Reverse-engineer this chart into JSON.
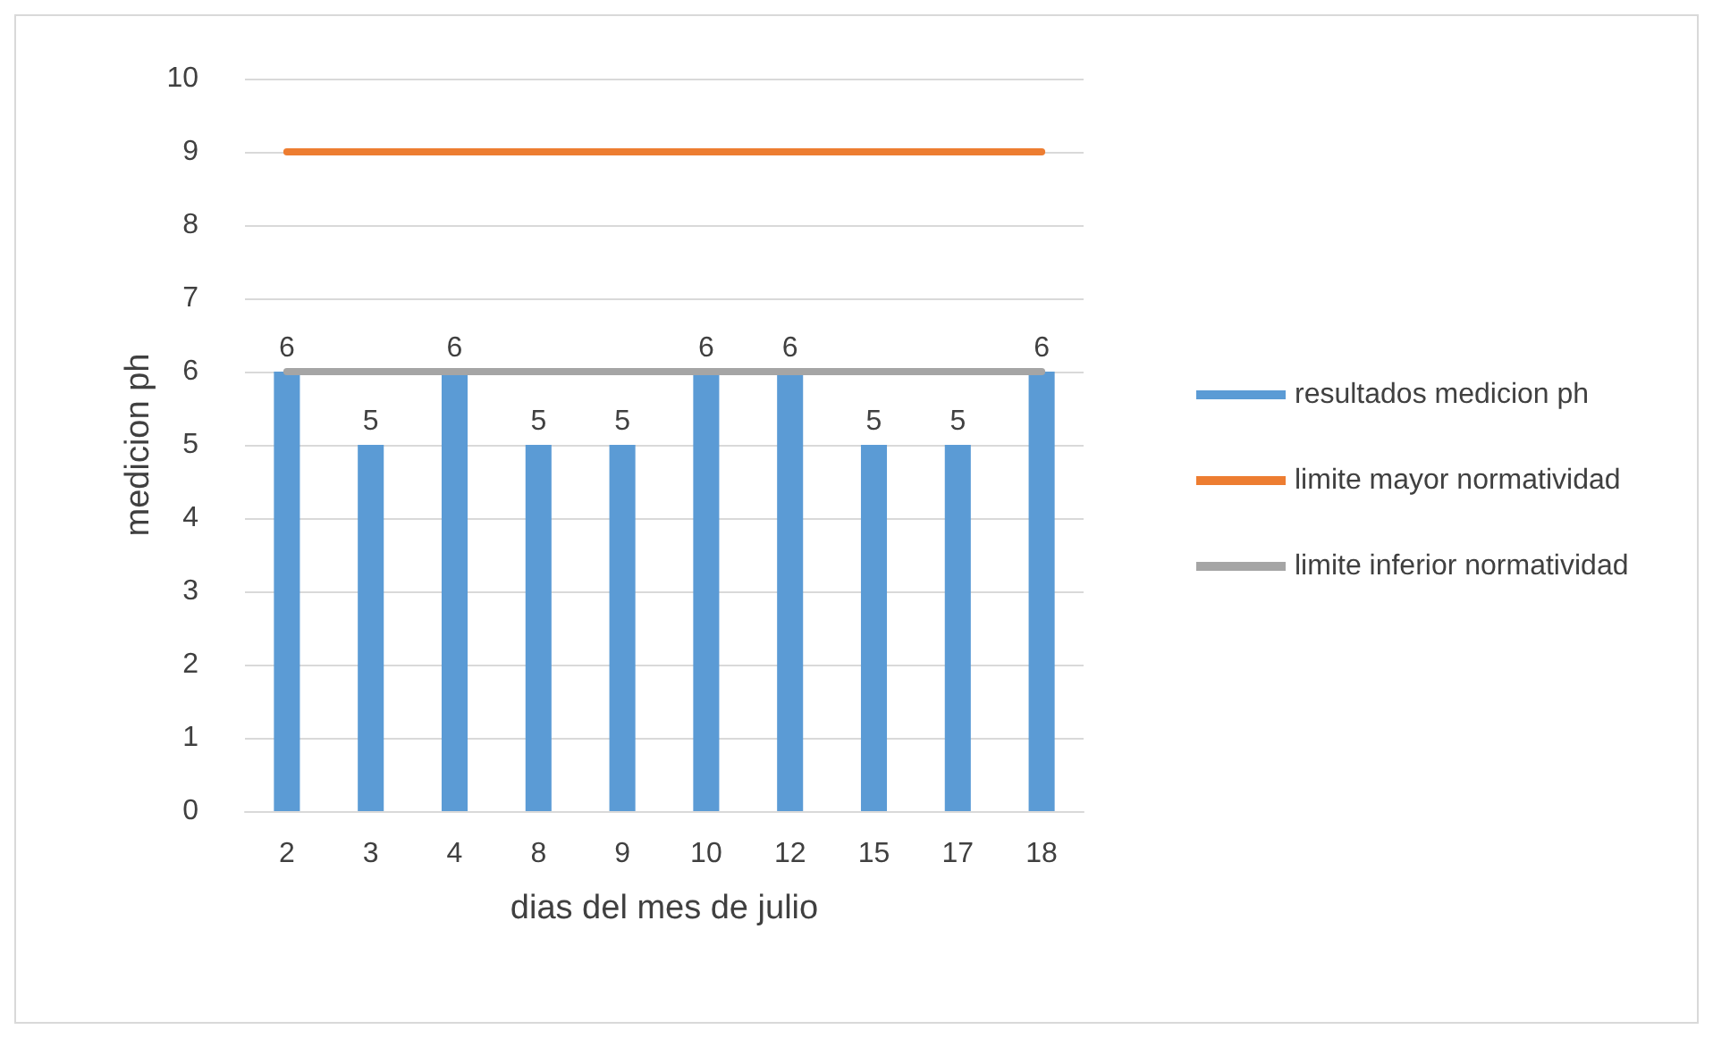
{
  "chart_data": {
    "type": "bar",
    "xlabel": "dias del mes de julio",
    "ylabel": "medicion ph",
    "categories": [
      "2",
      "3",
      "4",
      "8",
      "9",
      "10",
      "12",
      "15",
      "17",
      "18"
    ],
    "series": [
      {
        "name": "resultados medicion ph",
        "color": "#5b9bd5",
        "values": [
          6,
          5,
          6,
          5,
          5,
          6,
          6,
          5,
          5,
          6
        ],
        "value_labels": [
          "6",
          "5",
          "6",
          "5",
          "5",
          "6",
          "6",
          "5",
          "5",
          "6"
        ]
      },
      {
        "name": "limite mayor normatividad",
        "type": "line",
        "color": "#ed7d31",
        "values": [
          9,
          9,
          9,
          9,
          9,
          9,
          9,
          9,
          9,
          9
        ]
      },
      {
        "name": "limite inferior normatividad",
        "type": "line",
        "color": "#a5a5a5",
        "values": [
          6,
          6,
          6,
          6,
          6,
          6,
          6,
          6,
          6,
          6
        ]
      }
    ],
    "ylim": [
      0,
      10
    ],
    "yticks": [
      0,
      1,
      2,
      3,
      4,
      5,
      6,
      7,
      8,
      9,
      10
    ],
    "grid": "y",
    "legend": "right",
    "marker": "none",
    "line_style": "solid"
  }
}
